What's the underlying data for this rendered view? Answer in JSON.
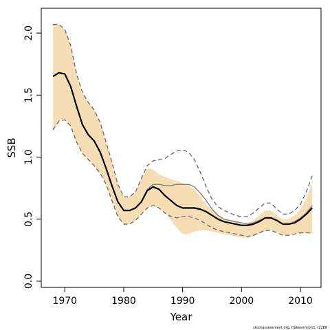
{
  "chart_data": {
    "type": "line",
    "xlabel": "Year",
    "ylabel": "SSB",
    "xlim": [
      1966,
      2013.5
    ],
    "ylim": [
      -0.05,
      2.2
    ],
    "x_ticks": [
      1970,
      1980,
      1990,
      2000,
      2010
    ],
    "x_tick_labels": [
      "1970",
      "1980",
      "1990",
      "2000",
      "2010"
    ],
    "y_ticks": [
      0.0,
      0.5,
      1.0,
      1.5,
      2.0
    ],
    "y_tick_labels": [
      "0.0",
      "0.5",
      "1.0",
      "1.5",
      "2.0"
    ],
    "grid": false,
    "legend": "none",
    "colors": {
      "band": "#f5deb3",
      "median": "#000000",
      "alternate": "#888888",
      "bounds": "#707070"
    },
    "x": [
      1968,
      1969,
      1970,
      1971,
      1972,
      1973,
      1974,
      1975,
      1976,
      1977,
      1978,
      1979,
      1980,
      1981,
      1982,
      1983,
      1984,
      1985,
      1986,
      1987,
      1988,
      1989,
      1990,
      1991,
      1992,
      1993,
      1994,
      1995,
      1996,
      1997,
      1998,
      1999,
      2000,
      2001,
      2002,
      2003,
      2004,
      2005,
      2006,
      2007,
      2008,
      2009,
      2010,
      2011,
      2012
    ],
    "band": {
      "lower": [
        1.22,
        1.29,
        1.3,
        1.25,
        1.12,
        1.03,
        0.98,
        0.93,
        0.87,
        0.78,
        0.65,
        0.52,
        0.46,
        0.46,
        0.49,
        0.54,
        0.59,
        0.61,
        0.59,
        0.55,
        0.49,
        0.43,
        0.38,
        0.38,
        0.4,
        0.41,
        0.41,
        0.4,
        0.39,
        0.38,
        0.37,
        0.36,
        0.35,
        0.35,
        0.36,
        0.38,
        0.4,
        0.41,
        0.39,
        0.37,
        0.37,
        0.38,
        0.38,
        0.39,
        0.38
      ],
      "upper": [
        2.07,
        2.07,
        2.03,
        1.9,
        1.67,
        1.52,
        1.44,
        1.38,
        1.28,
        1.12,
        0.96,
        0.78,
        0.68,
        0.68,
        0.72,
        0.83,
        0.91,
        0.9,
        0.86,
        0.84,
        0.82,
        0.81,
        0.79,
        0.77,
        0.74,
        0.68,
        0.62,
        0.57,
        0.53,
        0.5,
        0.49,
        0.48,
        0.47,
        0.47,
        0.49,
        0.53,
        0.57,
        0.57,
        0.53,
        0.5,
        0.5,
        0.53,
        0.58,
        0.67,
        0.8
      ]
    },
    "series": [
      {
        "name": "",
        "role": "median",
        "values": [
          1.65,
          1.68,
          1.67,
          1.57,
          1.41,
          1.26,
          1.18,
          1.13,
          1.04,
          0.91,
          0.77,
          0.64,
          0.57,
          0.57,
          0.59,
          0.64,
          0.73,
          0.76,
          0.74,
          0.69,
          0.65,
          0.61,
          0.59,
          0.59,
          0.59,
          0.58,
          0.56,
          0.53,
          0.5,
          0.48,
          0.47,
          0.46,
          0.45,
          0.45,
          0.46,
          0.48,
          0.51,
          0.51,
          0.49,
          0.46,
          0.46,
          0.47,
          0.5,
          0.54,
          0.59
        ]
      },
      {
        "name": "",
        "role": "alternate",
        "values": [
          1.65,
          1.68,
          1.67,
          1.57,
          1.41,
          1.26,
          1.18,
          1.13,
          1.04,
          0.91,
          0.77,
          0.64,
          0.57,
          0.57,
          0.59,
          0.64,
          0.74,
          0.78,
          0.78,
          0.77,
          0.77,
          0.78,
          0.78,
          0.78,
          0.76,
          0.71,
          0.65,
          0.58,
          0.53,
          0.5,
          0.49,
          0.48,
          0.47,
          0.46,
          0.47,
          0.49,
          0.51,
          0.51,
          0.49,
          0.46,
          0.46,
          0.48,
          0.51,
          0.55,
          0.61
        ]
      },
      {
        "name": "",
        "role": "upper-dashed",
        "values": [
          2.07,
          2.07,
          2.03,
          1.9,
          1.67,
          1.52,
          1.44,
          1.38,
          1.28,
          1.12,
          0.96,
          0.78,
          0.68,
          0.68,
          0.72,
          0.83,
          0.93,
          0.97,
          0.98,
          0.99,
          1.02,
          1.05,
          1.06,
          1.04,
          0.98,
          0.88,
          0.76,
          0.66,
          0.6,
          0.57,
          0.55,
          0.53,
          0.52,
          0.52,
          0.55,
          0.59,
          0.63,
          0.63,
          0.58,
          0.54,
          0.54,
          0.57,
          0.62,
          0.72,
          0.85
        ]
      },
      {
        "name": "",
        "role": "lower-dashed",
        "values": [
          1.22,
          1.29,
          1.3,
          1.25,
          1.12,
          1.03,
          0.98,
          0.93,
          0.87,
          0.78,
          0.65,
          0.52,
          0.46,
          0.46,
          0.49,
          0.54,
          0.59,
          0.61,
          0.59,
          0.55,
          0.52,
          0.51,
          0.52,
          0.52,
          0.51,
          0.49,
          0.46,
          0.43,
          0.41,
          0.4,
          0.39,
          0.38,
          0.37,
          0.36,
          0.37,
          0.39,
          0.41,
          0.41,
          0.39,
          0.37,
          0.37,
          0.38,
          0.39,
          0.39,
          0.39
        ]
      }
    ],
    "annotation": "stockassessment.org, Hakeversion3, r2288"
  }
}
